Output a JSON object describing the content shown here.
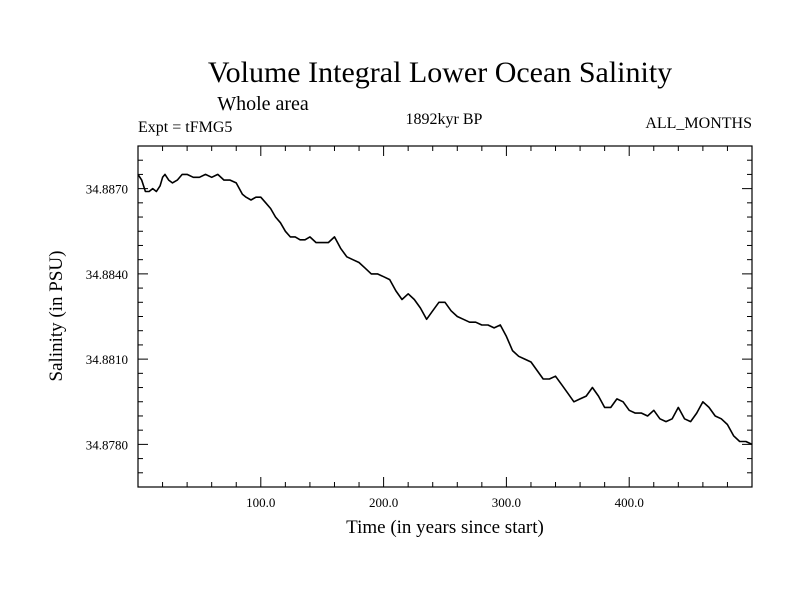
{
  "chart_data": {
    "type": "line",
    "title": "Volume Integral Lower Ocean Salinity",
    "subtitle": "Whole area",
    "left_label": "Expt = tFMG5",
    "center_label": "1892kyr BP",
    "right_label": "ALL_MONTHS",
    "xlabel": "Time (in years since start)",
    "ylabel": "Salinity (in PSU)",
    "xlim": [
      0,
      500
    ],
    "ylim": [
      34.8765,
      34.8885
    ],
    "x_major_ticks": [
      100,
      200,
      300,
      400
    ],
    "x_tick_labels": [
      "100.0",
      "200.0",
      "300.0",
      "400.0"
    ],
    "y_major_ticks": [
      34.878,
      34.881,
      34.884,
      34.887
    ],
    "y_tick_labels": [
      "34.8780",
      "34.8810",
      "34.8840",
      "34.8870"
    ],
    "grid": false,
    "series": [
      {
        "name": "salinity",
        "x": [
          0,
          3,
          6,
          9,
          12,
          15,
          18,
          20,
          22,
          25,
          28,
          32,
          36,
          40,
          45,
          50,
          55,
          60,
          65,
          70,
          75,
          80,
          85,
          88,
          92,
          96,
          100,
          104,
          108,
          112,
          116,
          120,
          124,
          128,
          132,
          136,
          140,
          145,
          150,
          155,
          160,
          165,
          170,
          175,
          180,
          185,
          190,
          195,
          200,
          205,
          210,
          215,
          220,
          225,
          230,
          235,
          240,
          245,
          250,
          255,
          260,
          265,
          270,
          275,
          280,
          285,
          290,
          295,
          300,
          305,
          310,
          315,
          320,
          325,
          330,
          335,
          340,
          345,
          350,
          355,
          360,
          365,
          370,
          375,
          380,
          385,
          390,
          395,
          400,
          405,
          410,
          415,
          420,
          425,
          430,
          435,
          440,
          445,
          450,
          455,
          460,
          465,
          470,
          475,
          480,
          485,
          490,
          495,
          500
        ],
        "y": [
          34.8875,
          34.8873,
          34.8869,
          34.8869,
          34.887,
          34.8869,
          34.8871,
          34.8874,
          34.8875,
          34.8873,
          34.8872,
          34.8873,
          34.8875,
          34.8875,
          34.8874,
          34.8874,
          34.8875,
          34.8874,
          34.8875,
          34.8873,
          34.8873,
          34.8872,
          34.8868,
          34.8867,
          34.8866,
          34.8867,
          34.8867,
          34.8865,
          34.8863,
          34.886,
          34.8858,
          34.8855,
          34.8853,
          34.8853,
          34.8852,
          34.8852,
          34.8853,
          34.8851,
          34.8851,
          34.8851,
          34.8853,
          34.8849,
          34.8846,
          34.8845,
          34.8844,
          34.8842,
          34.884,
          34.884,
          34.8839,
          34.8838,
          34.8834,
          34.8831,
          34.8833,
          34.8831,
          34.8828,
          34.8824,
          34.8827,
          34.883,
          34.883,
          34.8827,
          34.8825,
          34.8824,
          34.8823,
          34.8823,
          34.8822,
          34.8822,
          34.8821,
          34.8822,
          34.8818,
          34.8813,
          34.8811,
          34.881,
          34.8809,
          34.8806,
          34.8803,
          34.8803,
          34.8804,
          34.8801,
          34.8798,
          34.8795,
          34.8796,
          34.8797,
          34.88,
          34.8797,
          34.8793,
          34.8793,
          34.8796,
          34.8795,
          34.8792,
          34.8791,
          34.8791,
          34.879,
          34.8792,
          34.8789,
          34.8788,
          34.8789,
          34.8793,
          34.8789,
          34.8788,
          34.8791,
          34.8795,
          34.8793,
          34.879,
          34.8789,
          34.8787,
          34.8783,
          34.8781,
          34.8781,
          34.878
        ]
      }
    ]
  }
}
